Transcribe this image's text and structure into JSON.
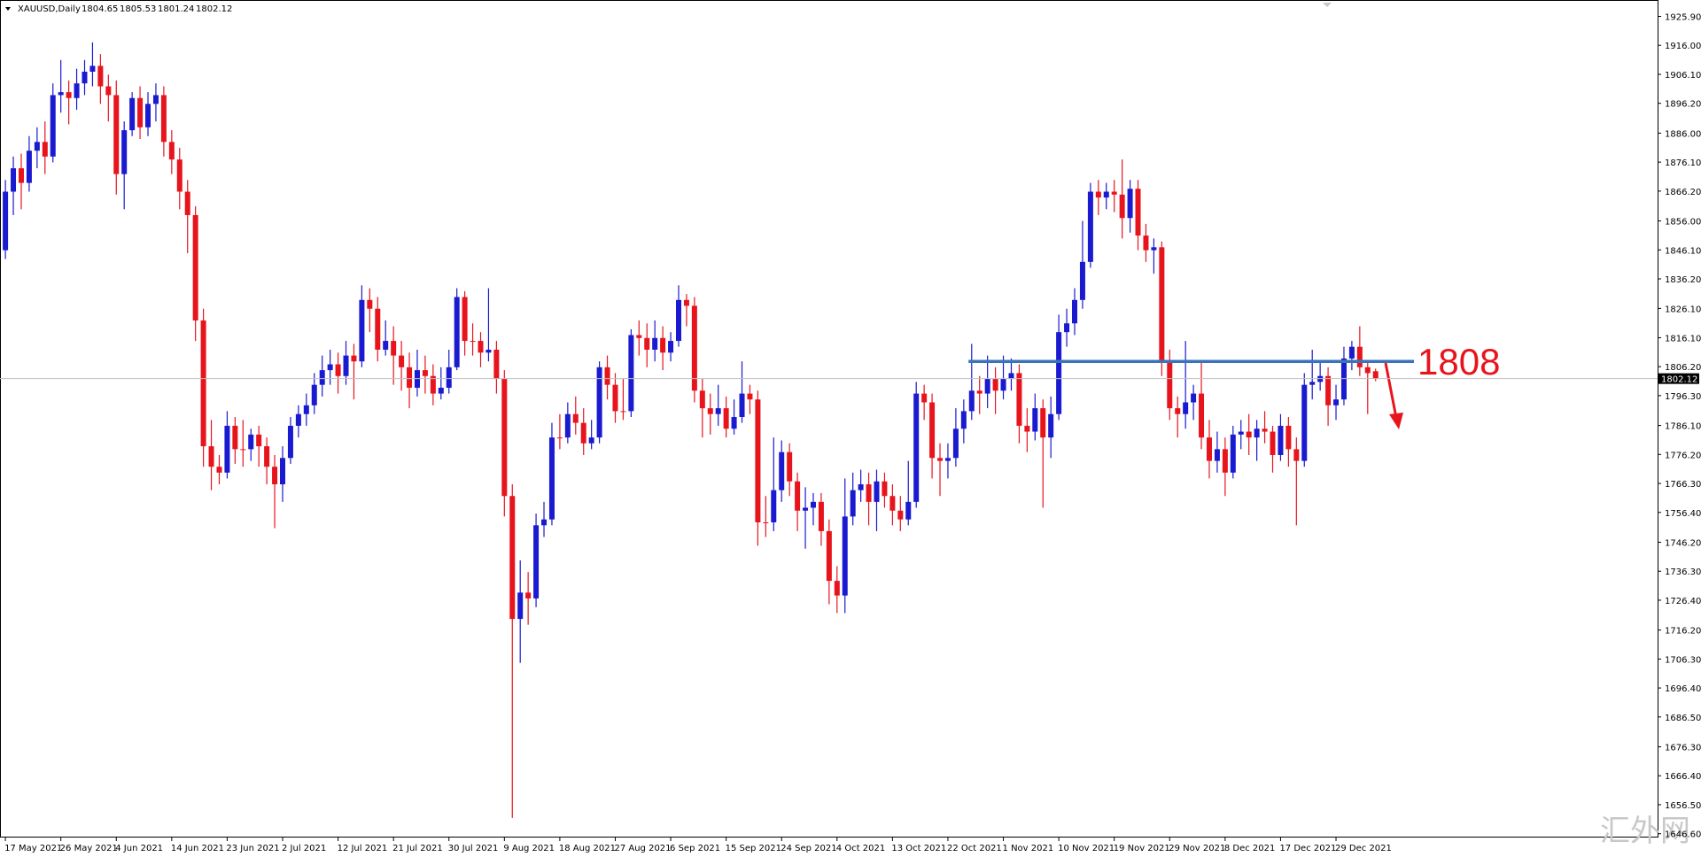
{
  "chart_data": {
    "type": "candlestick",
    "symbol": "XAUUSD,Daily",
    "up_color": "#1a1ad0",
    "down_color": "#e8141c",
    "ylim": [
      1645.6,
      1931.5
    ],
    "yticks": [
      {
        "value": 1925.9,
        "label": "1925.90"
      },
      {
        "value": 1916,
        "label": "1916.00"
      },
      {
        "value": 1906.1,
        "label": "1906.10"
      },
      {
        "value": 1896.2,
        "label": "1896.20"
      },
      {
        "value": 1886,
        "label": "1886.00"
      },
      {
        "value": 1876.1,
        "label": "1876.10"
      },
      {
        "value": 1866.2,
        "label": "1866.20"
      },
      {
        "value": 1856,
        "label": "1856.00"
      },
      {
        "value": 1846.1,
        "label": "1846.10"
      },
      {
        "value": 1836.2,
        "label": "1836.20"
      },
      {
        "value": 1826.1,
        "label": "1826.10"
      },
      {
        "value": 1816.1,
        "label": "1816.10"
      },
      {
        "value": 1806.2,
        "label": "1806.20"
      },
      {
        "value": 1796.3,
        "label": "1796.30"
      },
      {
        "value": 1786.1,
        "label": "1786.10"
      },
      {
        "value": 1776.2,
        "label": "1776.20"
      },
      {
        "value": 1766.3,
        "label": "1766.30"
      },
      {
        "value": 1756.4,
        "label": "1756.40"
      },
      {
        "value": 1746.2,
        "label": "1746.20"
      },
      {
        "value": 1736.3,
        "label": "1736.30"
      },
      {
        "value": 1726.4,
        "label": "1726.40"
      },
      {
        "value": 1716.2,
        "label": "1716.20"
      },
      {
        "value": 1706.3,
        "label": "1706.30"
      },
      {
        "value": 1696.4,
        "label": "1696.40"
      },
      {
        "value": 1686.5,
        "label": "1686.50"
      },
      {
        "value": 1676.3,
        "label": "1676.30"
      },
      {
        "value": 1666.4,
        "label": "1666.40"
      },
      {
        "value": 1656.5,
        "label": "1656.50"
      },
      {
        "value": 1646.6,
        "label": "1646.60"
      }
    ],
    "categories": [
      "17 May 2021",
      null,
      null,
      null,
      null,
      null,
      null,
      "26 May 2021",
      null,
      null,
      null,
      null,
      null,
      null,
      "4 Jun 2021",
      null,
      null,
      null,
      null,
      null,
      null,
      "14 Jun 2021",
      null,
      null,
      null,
      null,
      null,
      null,
      "23 Jun 2021",
      null,
      null,
      null,
      null,
      null,
      null,
      "2 Jul 2021",
      null,
      null,
      null,
      null,
      null,
      null,
      "12 Jul 2021",
      null,
      null,
      null,
      null,
      null,
      null,
      "21 Jul 2021",
      null,
      null,
      null,
      null,
      null,
      null,
      "30 Jul 2021",
      null,
      null,
      null,
      null,
      null,
      null,
      "9 Aug 2021",
      null,
      null,
      null,
      null,
      null,
      null,
      "18 Aug 2021",
      null,
      null,
      null,
      null,
      null,
      null,
      "27 Aug 2021",
      null,
      null,
      null,
      null,
      null,
      null,
      "6 Sep 2021",
      null,
      null,
      null,
      null,
      null,
      null,
      "15 Sep 2021",
      null,
      null,
      null,
      null,
      null,
      null,
      "24 Sep 2021",
      null,
      null,
      null,
      null,
      null,
      null,
      "4 Oct 2021",
      null,
      null,
      null,
      null,
      null,
      null,
      "13 Oct 2021",
      null,
      null,
      null,
      null,
      null,
      null,
      "22 Oct 2021",
      null,
      null,
      null,
      null,
      null,
      null,
      "1 Nov 2021",
      null,
      null,
      null,
      null,
      null,
      null,
      "10 Nov 2021",
      null,
      null,
      null,
      null,
      null,
      null,
      "19 Nov 2021",
      null,
      null,
      null,
      null,
      null,
      null,
      "29 Nov 2021",
      null,
      null,
      null,
      null,
      null,
      null,
      "8 Dec 2021",
      null,
      null,
      null,
      null,
      null,
      null,
      "17 Dec 2021",
      null,
      null,
      null,
      null,
      null,
      null,
      "29 Dec 2021",
      null,
      null,
      null,
      null,
      null
    ],
    "values": [
      [
        1846,
        1870,
        1843,
        1866
      ],
      [
        1866,
        1878,
        1858,
        1874
      ],
      [
        1874,
        1879,
        1860,
        1869
      ],
      [
        1869,
        1885,
        1866,
        1880
      ],
      [
        1880,
        1888,
        1874,
        1883
      ],
      [
        1883,
        1890,
        1872,
        1878
      ],
      [
        1878,
        1903,
        1876,
        1899
      ],
      [
        1899,
        1911,
        1893,
        1900
      ],
      [
        1900,
        1904,
        1889,
        1898
      ],
      [
        1898,
        1908,
        1894,
        1903
      ],
      [
        1903,
        1911,
        1899,
        1907
      ],
      [
        1907,
        1917,
        1902,
        1909
      ],
      [
        1909,
        1913,
        1896,
        1902
      ],
      [
        1902,
        1906,
        1890,
        1899
      ],
      [
        1899,
        1904,
        1865,
        1872
      ],
      [
        1872,
        1890,
        1860,
        1887
      ],
      [
        1887,
        1900,
        1885,
        1898
      ],
      [
        1898,
        1902,
        1884,
        1888
      ],
      [
        1888,
        1900,
        1885,
        1896
      ],
      [
        1896,
        1903,
        1890,
        1899
      ],
      [
        1899,
        1902,
        1878,
        1883
      ],
      [
        1883,
        1887,
        1872,
        1877
      ],
      [
        1877,
        1881,
        1860,
        1866
      ],
      [
        1866,
        1870,
        1845,
        1858
      ],
      [
        1858,
        1861,
        1815,
        1822
      ],
      [
        1822,
        1826,
        1772,
        1779
      ],
      [
        1779,
        1788,
        1764,
        1772
      ],
      [
        1772,
        1776,
        1766,
        1770
      ],
      [
        1770,
        1791,
        1768,
        1786
      ],
      [
        1786,
        1789,
        1773,
        1778
      ],
      [
        1778,
        1788,
        1772,
        1778
      ],
      [
        1778,
        1785,
        1774,
        1783
      ],
      [
        1783,
        1786,
        1772,
        1779
      ],
      [
        1779,
        1782,
        1766,
        1772
      ],
      [
        1772,
        1776,
        1751,
        1766
      ],
      [
        1766,
        1779,
        1760,
        1775
      ],
      [
        1775,
        1789,
        1773,
        1786
      ],
      [
        1786,
        1793,
        1782,
        1790
      ],
      [
        1790,
        1797,
        1786,
        1793
      ],
      [
        1793,
        1804,
        1790,
        1800
      ],
      [
        1800,
        1810,
        1796,
        1805
      ],
      [
        1805,
        1812,
        1800,
        1807
      ],
      [
        1807,
        1811,
        1797,
        1803
      ],
      [
        1803,
        1815,
        1800,
        1810
      ],
      [
        1810,
        1814,
        1795,
        1808
      ],
      [
        1808,
        1834,
        1806,
        1829
      ],
      [
        1829,
        1833,
        1818,
        1826
      ],
      [
        1826,
        1830,
        1808,
        1812
      ],
      [
        1812,
        1822,
        1810,
        1815
      ],
      [
        1815,
        1820,
        1800,
        1810
      ],
      [
        1810,
        1815,
        1798,
        1806
      ],
      [
        1806,
        1811,
        1792,
        1799
      ],
      [
        1799,
        1812,
        1796,
        1805
      ],
      [
        1805,
        1810,
        1797,
        1803
      ],
      [
        1803,
        1807,
        1793,
        1797
      ],
      [
        1797,
        1806,
        1795,
        1799
      ],
      [
        1799,
        1812,
        1797,
        1806
      ],
      [
        1806,
        1833,
        1805,
        1830
      ],
      [
        1830,
        1832,
        1810,
        1815
      ],
      [
        1815,
        1821,
        1810,
        1815
      ],
      [
        1815,
        1818,
        1806,
        1811
      ],
      [
        1811,
        1833,
        1808,
        1812
      ],
      [
        1812,
        1815,
        1797,
        1802
      ],
      [
        1802,
        1805,
        1755,
        1762
      ],
      [
        1762,
        1766,
        1652,
        1720
      ],
      [
        1720,
        1740,
        1705,
        1729
      ],
      [
        1729,
        1736,
        1718,
        1727
      ],
      [
        1727,
        1756,
        1724,
        1752
      ],
      [
        1752,
        1760,
        1748,
        1754
      ],
      [
        1754,
        1787,
        1752,
        1782
      ],
      [
        1782,
        1790,
        1778,
        1782
      ],
      [
        1782,
        1794,
        1780,
        1790
      ],
      [
        1790,
        1796,
        1783,
        1787
      ],
      [
        1787,
        1792,
        1776,
        1780
      ],
      [
        1780,
        1788,
        1778,
        1782
      ],
      [
        1782,
        1808,
        1780,
        1806
      ],
      [
        1806,
        1810,
        1795,
        1800
      ],
      [
        1800,
        1804,
        1787,
        1791
      ],
      [
        1791,
        1802,
        1788,
        1791
      ],
      [
        1791,
        1819,
        1789,
        1817
      ],
      [
        1817,
        1822,
        1810,
        1816
      ],
      [
        1816,
        1821,
        1806,
        1812
      ],
      [
        1812,
        1822,
        1808,
        1816
      ],
      [
        1816,
        1820,
        1805,
        1811
      ],
      [
        1811,
        1818,
        1808,
        1815
      ],
      [
        1815,
        1834,
        1813,
        1829
      ],
      [
        1829,
        1831,
        1820,
        1827
      ],
      [
        1827,
        1830,
        1794,
        1798
      ],
      [
        1798,
        1802,
        1782,
        1792
      ],
      [
        1792,
        1797,
        1783,
        1790
      ],
      [
        1790,
        1800,
        1786,
        1792
      ],
      [
        1792,
        1796,
        1782,
        1785
      ],
      [
        1785,
        1795,
        1783,
        1789
      ],
      [
        1789,
        1808,
        1787,
        1797
      ],
      [
        1797,
        1800,
        1790,
        1795
      ],
      [
        1795,
        1798,
        1745,
        1753
      ],
      [
        1753,
        1762,
        1748,
        1753
      ],
      [
        1753,
        1782,
        1750,
        1764
      ],
      [
        1764,
        1781,
        1760,
        1777
      ],
      [
        1777,
        1780,
        1762,
        1767
      ],
      [
        1767,
        1770,
        1750,
        1757
      ],
      [
        1757,
        1765,
        1744,
        1758
      ],
      [
        1758,
        1763,
        1752,
        1760
      ],
      [
        1760,
        1763,
        1745,
        1750
      ],
      [
        1750,
        1754,
        1725,
        1733
      ],
      [
        1733,
        1738,
        1722,
        1728
      ],
      [
        1728,
        1768,
        1722,
        1755
      ],
      [
        1755,
        1770,
        1752,
        1764
      ],
      [
        1764,
        1771,
        1760,
        1766
      ],
      [
        1766,
        1770,
        1752,
        1760
      ],
      [
        1760,
        1771,
        1750,
        1767
      ],
      [
        1767,
        1770,
        1758,
        1762
      ],
      [
        1762,
        1766,
        1752,
        1757
      ],
      [
        1757,
        1762,
        1750,
        1754
      ],
      [
        1754,
        1774,
        1752,
        1760
      ],
      [
        1760,
        1801,
        1758,
        1797
      ],
      [
        1797,
        1800,
        1788,
        1794
      ],
      [
        1794,
        1797,
        1768,
        1775
      ],
      [
        1775,
        1780,
        1762,
        1774
      ],
      [
        1774,
        1780,
        1768,
        1775
      ],
      [
        1775,
        1792,
        1772,
        1785
      ],
      [
        1785,
        1795,
        1780,
        1791
      ],
      [
        1791,
        1814,
        1788,
        1798
      ],
      [
        1798,
        1803,
        1790,
        1797
      ],
      [
        1797,
        1810,
        1792,
        1802
      ],
      [
        1802,
        1806,
        1790,
        1798
      ],
      [
        1798,
        1810,
        1795,
        1802
      ],
      [
        1802,
        1809,
        1798,
        1804
      ],
      [
        1804,
        1807,
        1780,
        1786
      ],
      [
        1786,
        1792,
        1777,
        1784
      ],
      [
        1784,
        1797,
        1781,
        1792
      ],
      [
        1792,
        1795,
        1758,
        1782
      ],
      [
        1782,
        1796,
        1775,
        1790
      ],
      [
        1790,
        1824,
        1788,
        1818
      ],
      [
        1818,
        1826,
        1813,
        1821
      ],
      [
        1821,
        1833,
        1817,
        1829
      ],
      [
        1829,
        1856,
        1826,
        1842
      ],
      [
        1842,
        1869,
        1840,
        1866
      ],
      [
        1866,
        1870,
        1858,
        1864
      ],
      [
        1864,
        1869,
        1860,
        1866
      ],
      [
        1866,
        1870,
        1859,
        1865
      ],
      [
        1865,
        1877,
        1850,
        1857
      ],
      [
        1857,
        1870,
        1852,
        1867
      ],
      [
        1867,
        1870,
        1846,
        1851
      ],
      [
        1851,
        1855,
        1842,
        1846
      ],
      [
        1846,
        1850,
        1838,
        1847
      ],
      [
        1847,
        1849,
        1803,
        1808
      ],
      [
        1808,
        1812,
        1788,
        1792
      ],
      [
        1792,
        1796,
        1782,
        1790
      ],
      [
        1790,
        1815,
        1785,
        1794
      ],
      [
        1794,
        1800,
        1788,
        1797
      ],
      [
        1797,
        1808,
        1778,
        1782
      ],
      [
        1782,
        1788,
        1768,
        1774
      ],
      [
        1774,
        1784,
        1770,
        1778
      ],
      [
        1778,
        1782,
        1762,
        1770
      ],
      [
        1770,
        1786,
        1768,
        1783
      ],
      [
        1783,
        1788,
        1778,
        1784
      ],
      [
        1784,
        1790,
        1776,
        1782
      ],
      [
        1782,
        1788,
        1774,
        1785
      ],
      [
        1785,
        1791,
        1780,
        1784
      ],
      [
        1784,
        1786,
        1770,
        1776
      ],
      [
        1776,
        1790,
        1774,
        1786
      ],
      [
        1786,
        1789,
        1772,
        1778
      ],
      [
        1778,
        1782,
        1752,
        1774
      ],
      [
        1774,
        1804,
        1772,
        1800
      ],
      [
        1800,
        1812,
        1795,
        1801
      ],
      [
        1801,
        1808,
        1798,
        1803
      ],
      [
        1803,
        1806,
        1786,
        1793
      ],
      [
        1793,
        1800,
        1788,
        1795
      ],
      [
        1795,
        1813,
        1793,
        1809
      ],
      [
        1809,
        1815,
        1805,
        1813
      ],
      [
        1813,
        1820,
        1803,
        1806
      ],
      [
        1806,
        1808,
        1790,
        1804
      ],
      [
        1804.65,
        1805.53,
        1801.24,
        1802.12
      ]
    ],
    "level": {
      "value": 1808,
      "color": "#3b73b9",
      "text_color": "#e8141c"
    },
    "watermark": "汇外网"
  }
}
